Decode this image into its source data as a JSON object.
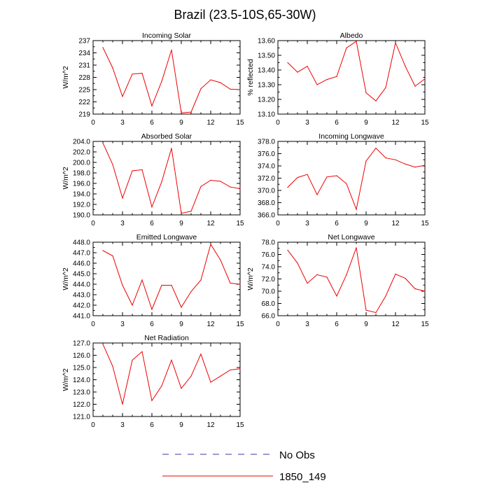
{
  "page_title": "Brazil (23.5-10S,65-30W)",
  "legend": {
    "entries": [
      {
        "label": "No Obs",
        "color": "#3a3aa0",
        "style": "dashed"
      },
      {
        "label": "1850_149",
        "color": "#ee0000",
        "style": "solid"
      }
    ]
  },
  "chart_data": [
    {
      "type": "line",
      "title": "Incoming Solar",
      "ylabel": "W/m^2",
      "xlim": [
        0,
        15
      ],
      "xticks": [
        "0",
        "3",
        "6",
        "9",
        "12",
        "15"
      ],
      "ylim": [
        219,
        237
      ],
      "yticks": [
        "219",
        "222",
        "225",
        "228",
        "231",
        "234",
        "237"
      ],
      "series": [
        {
          "name": "1850_149",
          "x": [
            1,
            2,
            3,
            4,
            5,
            6,
            7,
            8,
            9,
            10,
            11,
            12,
            13,
            14,
            15
          ],
          "values": [
            235.3,
            230.3,
            223.3,
            228.8,
            229.0,
            221.0,
            227.0,
            234.7,
            219.3,
            219.5,
            225.2,
            227.4,
            226.7,
            225.1,
            225.0
          ]
        }
      ]
    },
    {
      "type": "line",
      "title": "Albedo",
      "ylabel": "% reflected",
      "xlim": [
        0,
        15
      ],
      "xticks": [
        "0",
        "3",
        "6",
        "9",
        "12",
        "15"
      ],
      "ylim": [
        13.1,
        13.6
      ],
      "yticks": [
        "13.10",
        "13.20",
        "13.30",
        "13.40",
        "13.50",
        "13.60"
      ],
      "series": [
        {
          "name": "1850_149",
          "x": [
            1,
            2,
            3,
            4,
            5,
            6,
            7,
            8,
            9,
            10,
            11,
            12,
            13,
            14,
            15
          ],
          "values": [
            13.45,
            13.385,
            13.425,
            13.3,
            13.335,
            13.355,
            13.55,
            13.595,
            13.245,
            13.19,
            13.28,
            13.585,
            13.425,
            13.29,
            13.34
          ]
        }
      ]
    },
    {
      "type": "line",
      "title": "Absorbed Solar",
      "ylabel": "W/m^2",
      "xlim": [
        0,
        15
      ],
      "xticks": [
        "0",
        "3",
        "6",
        "9",
        "12",
        "15"
      ],
      "ylim": [
        190,
        204
      ],
      "yticks": [
        "190.0",
        "192.0",
        "194.0",
        "196.0",
        "198.0",
        "200.0",
        "202.0",
        "204.0"
      ],
      "series": [
        {
          "name": "1850_149",
          "x": [
            1,
            2,
            3,
            4,
            5,
            6,
            7,
            8,
            9,
            10,
            11,
            12,
            13,
            14,
            15
          ],
          "values": [
            203.7,
            199.6,
            193.2,
            198.4,
            198.6,
            191.5,
            196.3,
            202.7,
            190.3,
            190.7,
            195.4,
            196.6,
            196.4,
            195.3,
            195.0
          ]
        }
      ]
    },
    {
      "type": "line",
      "title": "Incoming Longwave",
      "ylabel": "",
      "xlim": [
        0,
        15
      ],
      "xticks": [
        "0",
        "3",
        "6",
        "9",
        "12",
        "15"
      ],
      "ylim": [
        366,
        378
      ],
      "yticks": [
        "366.0",
        "368.0",
        "370.0",
        "372.0",
        "374.0",
        "376.0",
        "378.0"
      ],
      "series": [
        {
          "name": "1850_149",
          "x": [
            1,
            2,
            3,
            4,
            5,
            6,
            7,
            8,
            9,
            10,
            11,
            12,
            13,
            14,
            15
          ],
          "values": [
            370.5,
            372.1,
            372.6,
            369.3,
            372.2,
            372.4,
            371.1,
            366.9,
            374.8,
            376.9,
            375.3,
            375.0,
            374.3,
            373.8,
            374.1
          ]
        }
      ]
    },
    {
      "type": "line",
      "title": "Emitted Longwave",
      "ylabel": "W/m^2",
      "xlim": [
        0,
        15
      ],
      "xticks": [
        "0",
        "3",
        "6",
        "9",
        "12",
        "15"
      ],
      "ylim": [
        441,
        448
      ],
      "yticks": [
        "441.0",
        "442.0",
        "443.0",
        "444.0",
        "445.0",
        "446.0",
        "447.0",
        "448.0"
      ],
      "series": [
        {
          "name": "1850_149",
          "x": [
            1,
            2,
            3,
            4,
            5,
            6,
            7,
            8,
            9,
            10,
            11,
            12,
            13,
            14,
            15
          ],
          "values": [
            447.2,
            446.7,
            443.9,
            442.0,
            444.4,
            441.6,
            443.9,
            443.9,
            441.8,
            443.3,
            444.4,
            447.8,
            446.3,
            444.1,
            444.0
          ]
        }
      ]
    },
    {
      "type": "line",
      "title": "Net Longwave",
      "ylabel": "W/m^2",
      "xlim": [
        0,
        15
      ],
      "xticks": [
        "0",
        "3",
        "6",
        "9",
        "12",
        "15"
      ],
      "ylim": [
        66,
        78
      ],
      "yticks": [
        "66.0",
        "68.0",
        "70.0",
        "72.0",
        "74.0",
        "76.0",
        "78.0"
      ],
      "series": [
        {
          "name": "1850_149",
          "x": [
            1,
            2,
            3,
            4,
            5,
            6,
            7,
            8,
            9,
            10,
            11,
            12,
            13,
            14,
            15
          ],
          "values": [
            76.7,
            74.6,
            71.3,
            72.7,
            72.3,
            69.2,
            72.7,
            77.1,
            66.9,
            66.5,
            69.2,
            72.8,
            72.1,
            70.4,
            70.0
          ]
        }
      ]
    },
    {
      "type": "line",
      "title": "Net Radiation",
      "ylabel": "W/m^2",
      "xlim": [
        0,
        15
      ],
      "xticks": [
        "0",
        "3",
        "6",
        "9",
        "12",
        "15"
      ],
      "ylim": [
        121,
        127
      ],
      "yticks": [
        "121.0",
        "122.0",
        "123.0",
        "124.0",
        "125.0",
        "126.0",
        "127.0"
      ],
      "series": [
        {
          "name": "1850_149",
          "x": [
            1,
            2,
            3,
            4,
            5,
            6,
            7,
            8,
            9,
            10,
            11,
            12,
            13,
            14,
            15
          ],
          "values": [
            126.9,
            125.1,
            122.0,
            125.6,
            126.3,
            122.3,
            123.5,
            125.6,
            123.3,
            124.3,
            126.1,
            123.8,
            124.3,
            124.8,
            124.9
          ]
        }
      ]
    }
  ]
}
